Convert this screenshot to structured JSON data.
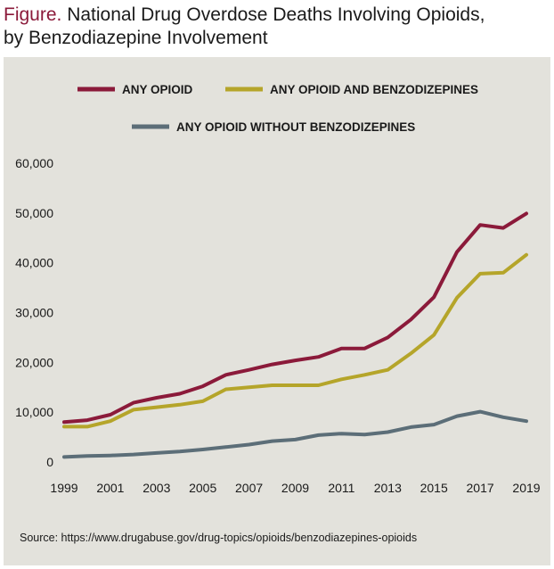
{
  "title": {
    "lead": "Figure.",
    "line1": "National Drug Overdose Deaths Involving Opioids,",
    "line2": "by Benzodiazepine Involvement"
  },
  "source": "Source: https://www.drugabuse.gov/drug-topics/opioids/benzodiazepines-opioids",
  "colors": {
    "background": "#e3e2dc",
    "title_accent": "#8b1a3a"
  },
  "chart_data": {
    "type": "line",
    "x": [
      1999,
      2000,
      2001,
      2002,
      2003,
      2004,
      2005,
      2006,
      2007,
      2008,
      2009,
      2010,
      2011,
      2012,
      2013,
      2014,
      2015,
      2016,
      2017,
      2018,
      2019
    ],
    "x_ticks": [
      "1999",
      "2001",
      "2003",
      "2005",
      "2007",
      "2009",
      "2011",
      "2013",
      "2015",
      "2017",
      "2019"
    ],
    "y_ticks": [
      "0",
      "10,000",
      "20,000",
      "30,000",
      "40,000",
      "50,000",
      "60,000"
    ],
    "ylim": [
      0,
      60000
    ],
    "grid": false,
    "legend_position": "top",
    "series": [
      {
        "name": "ANY OPIOID",
        "color": "#8b1a3a",
        "values": [
          8000,
          8400,
          9500,
          11900,
          12900,
          13700,
          15200,
          17500,
          18500,
          19600,
          20400,
          21100,
          22800,
          22800,
          25000,
          28600,
          33100,
          42200,
          47600,
          47000,
          49900
        ]
      },
      {
        "name": "ANY OPIOID AND BENZODIZEPINES",
        "color": "#b5a52a",
        "values": [
          7100,
          7100,
          8200,
          10500,
          11000,
          11500,
          12200,
          14600,
          15000,
          15400,
          15400,
          15400,
          16600,
          17500,
          18500,
          21800,
          25500,
          33000,
          37800,
          38000,
          41600
        ]
      },
      {
        "name": "ANY OPIOID WITHOUT BENZODIZEPINES",
        "color": "#5c6e78",
        "values": [
          1000,
          1200,
          1300,
          1500,
          1800,
          2100,
          2500,
          3000,
          3500,
          4200,
          4500,
          5400,
          5700,
          5500,
          6000,
          7000,
          7500,
          9200,
          10100,
          9000,
          8200
        ]
      }
    ]
  }
}
